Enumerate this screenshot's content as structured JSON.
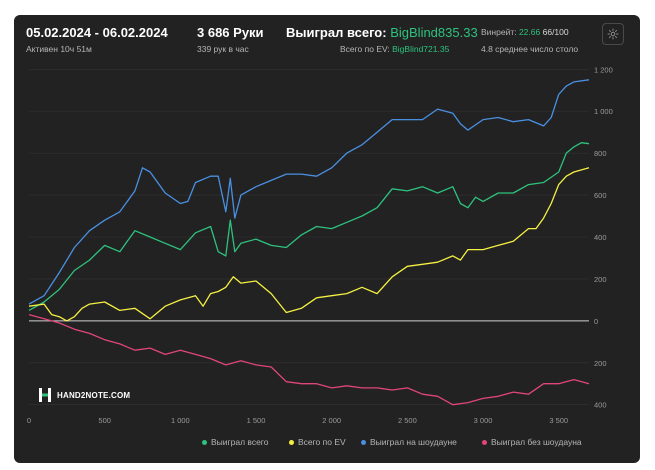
{
  "header": {
    "date_range": "05.02.2024 - 06.02.2024",
    "active": "Активен 10ч 51м",
    "hands": "3 686 Руки",
    "hands_per_hour": "339 рук в час",
    "won_total_label": "Выиграл всего:",
    "won_total_value": "BigBlind835.33",
    "ev_label": "Всего по EV:",
    "ev_value": "BigBlind721.35",
    "winrate_label": "Винрейт:",
    "winrate_value": "22.66",
    "winrate_suffix": "66/100",
    "avg_tables": "4.8 среднее число столо"
  },
  "logo": {
    "text": "HAND2NOTE.COM"
  },
  "colors": {
    "background": "#222222",
    "green": "#2ec27e",
    "yellow": "#f5f042",
    "blue": "#4a90e2",
    "pink": "#e0457b",
    "zero_line": "#d0d0d0",
    "grid": "#333333"
  },
  "chart_data": {
    "type": "line",
    "xlabel": "",
    "ylabel": "",
    "xlim": [
      0,
      3700
    ],
    "ylim": [
      -430,
      1230
    ],
    "x_ticks": [
      {
        "value": 0,
        "label": "0"
      },
      {
        "value": 500,
        "label": "500"
      },
      {
        "value": 1000,
        "label": "1 000"
      },
      {
        "value": 1500,
        "label": "1 500"
      },
      {
        "value": 2000,
        "label": "2 000"
      },
      {
        "value": 2500,
        "label": "2 500"
      },
      {
        "value": 3000,
        "label": "3 000"
      },
      {
        "value": 3500,
        "label": "3 500"
      }
    ],
    "y_ticks": [
      {
        "value": 1200,
        "label": "1 200"
      },
      {
        "value": 1000,
        "label": "1 000"
      },
      {
        "value": 800,
        "label": "800"
      },
      {
        "value": 600,
        "label": "600"
      },
      {
        "value": 400,
        "label": "400"
      },
      {
        "value": 200,
        "label": "200"
      },
      {
        "value": 0,
        "label": "0"
      },
      {
        "value": -200,
        "label": "200"
      },
      {
        "value": -400,
        "label": "400"
      }
    ],
    "grid": true,
    "legend_position": "bottom",
    "series": [
      {
        "name": "Выиграл всего",
        "color": "#2ec27e",
        "points": [
          [
            0,
            50
          ],
          [
            100,
            90
          ],
          [
            200,
            150
          ],
          [
            300,
            240
          ],
          [
            400,
            290
          ],
          [
            500,
            360
          ],
          [
            600,
            330
          ],
          [
            700,
            430
          ],
          [
            800,
            400
          ],
          [
            900,
            370
          ],
          [
            1000,
            340
          ],
          [
            1100,
            420
          ],
          [
            1200,
            450
          ],
          [
            1250,
            330
          ],
          [
            1300,
            310
          ],
          [
            1330,
            480
          ],
          [
            1360,
            330
          ],
          [
            1400,
            370
          ],
          [
            1500,
            390
          ],
          [
            1600,
            360
          ],
          [
            1700,
            350
          ],
          [
            1800,
            410
          ],
          [
            1900,
            450
          ],
          [
            2000,
            440
          ],
          [
            2100,
            470
          ],
          [
            2200,
            500
          ],
          [
            2300,
            540
          ],
          [
            2400,
            630
          ],
          [
            2500,
            620
          ],
          [
            2600,
            640
          ],
          [
            2700,
            610
          ],
          [
            2800,
            640
          ],
          [
            2850,
            560
          ],
          [
            2900,
            540
          ],
          [
            2950,
            590
          ],
          [
            3000,
            570
          ],
          [
            3100,
            610
          ],
          [
            3200,
            610
          ],
          [
            3300,
            650
          ],
          [
            3400,
            660
          ],
          [
            3500,
            710
          ],
          [
            3550,
            800
          ],
          [
            3600,
            830
          ],
          [
            3650,
            850
          ],
          [
            3700,
            845
          ]
        ]
      },
      {
        "name": "Всего по EV",
        "color": "#f5f042",
        "points": [
          [
            0,
            70
          ],
          [
            100,
            80
          ],
          [
            150,
            30
          ],
          [
            200,
            20
          ],
          [
            250,
            0
          ],
          [
            300,
            20
          ],
          [
            350,
            60
          ],
          [
            400,
            80
          ],
          [
            500,
            90
          ],
          [
            600,
            50
          ],
          [
            700,
            60
          ],
          [
            800,
            10
          ],
          [
            900,
            70
          ],
          [
            1000,
            100
          ],
          [
            1100,
            120
          ],
          [
            1150,
            70
          ],
          [
            1200,
            130
          ],
          [
            1250,
            140
          ],
          [
            1300,
            160
          ],
          [
            1350,
            210
          ],
          [
            1400,
            180
          ],
          [
            1500,
            190
          ],
          [
            1600,
            130
          ],
          [
            1700,
            40
          ],
          [
            1800,
            60
          ],
          [
            1900,
            110
          ],
          [
            2000,
            120
          ],
          [
            2100,
            130
          ],
          [
            2200,
            160
          ],
          [
            2300,
            130
          ],
          [
            2400,
            210
          ],
          [
            2500,
            260
          ],
          [
            2600,
            270
          ],
          [
            2700,
            280
          ],
          [
            2800,
            310
          ],
          [
            2850,
            290
          ],
          [
            2900,
            340
          ],
          [
            3000,
            340
          ],
          [
            3100,
            360
          ],
          [
            3200,
            380
          ],
          [
            3300,
            440
          ],
          [
            3350,
            440
          ],
          [
            3400,
            490
          ],
          [
            3450,
            560
          ],
          [
            3500,
            650
          ],
          [
            3550,
            690
          ],
          [
            3600,
            710
          ],
          [
            3700,
            730
          ]
        ]
      },
      {
        "name": "Выиграл на шоудауне",
        "color": "#4a90e2",
        "points": [
          [
            0,
            80
          ],
          [
            100,
            120
          ],
          [
            200,
            230
          ],
          [
            300,
            350
          ],
          [
            400,
            430
          ],
          [
            500,
            480
          ],
          [
            600,
            520
          ],
          [
            700,
            620
          ],
          [
            750,
            730
          ],
          [
            800,
            710
          ],
          [
            900,
            610
          ],
          [
            1000,
            560
          ],
          [
            1050,
            570
          ],
          [
            1100,
            660
          ],
          [
            1200,
            690
          ],
          [
            1250,
            690
          ],
          [
            1300,
            520
          ],
          [
            1330,
            680
          ],
          [
            1360,
            490
          ],
          [
            1400,
            600
          ],
          [
            1500,
            640
          ],
          [
            1600,
            670
          ],
          [
            1700,
            700
          ],
          [
            1800,
            700
          ],
          [
            1900,
            690
          ],
          [
            2000,
            730
          ],
          [
            2100,
            800
          ],
          [
            2200,
            840
          ],
          [
            2300,
            900
          ],
          [
            2400,
            960
          ],
          [
            2500,
            960
          ],
          [
            2600,
            960
          ],
          [
            2700,
            1010
          ],
          [
            2800,
            990
          ],
          [
            2850,
            940
          ],
          [
            2900,
            910
          ],
          [
            3000,
            960
          ],
          [
            3100,
            970
          ],
          [
            3200,
            950
          ],
          [
            3300,
            960
          ],
          [
            3400,
            930
          ],
          [
            3450,
            970
          ],
          [
            3500,
            1080
          ],
          [
            3550,
            1120
          ],
          [
            3600,
            1140
          ],
          [
            3700,
            1150
          ]
        ]
      },
      {
        "name": "Выиграл без шоудауна",
        "color": "#e0457b",
        "points": [
          [
            0,
            30
          ],
          [
            100,
            10
          ],
          [
            200,
            -10
          ],
          [
            300,
            -40
          ],
          [
            400,
            -60
          ],
          [
            500,
            -90
          ],
          [
            600,
            -110
          ],
          [
            700,
            -140
          ],
          [
            800,
            -130
          ],
          [
            900,
            -160
          ],
          [
            1000,
            -140
          ],
          [
            1100,
            -160
          ],
          [
            1200,
            -180
          ],
          [
            1300,
            -210
          ],
          [
            1400,
            -190
          ],
          [
            1500,
            -210
          ],
          [
            1600,
            -220
          ],
          [
            1700,
            -290
          ],
          [
            1800,
            -300
          ],
          [
            1900,
            -300
          ],
          [
            2000,
            -320
          ],
          [
            2100,
            -310
          ],
          [
            2200,
            -320
          ],
          [
            2300,
            -320
          ],
          [
            2400,
            -330
          ],
          [
            2500,
            -320
          ],
          [
            2600,
            -350
          ],
          [
            2700,
            -360
          ],
          [
            2800,
            -400
          ],
          [
            2900,
            -390
          ],
          [
            3000,
            -370
          ],
          [
            3100,
            -360
          ],
          [
            3200,
            -340
          ],
          [
            3300,
            -350
          ],
          [
            3400,
            -300
          ],
          [
            3500,
            -300
          ],
          [
            3600,
            -280
          ],
          [
            3700,
            -300
          ]
        ]
      }
    ]
  }
}
